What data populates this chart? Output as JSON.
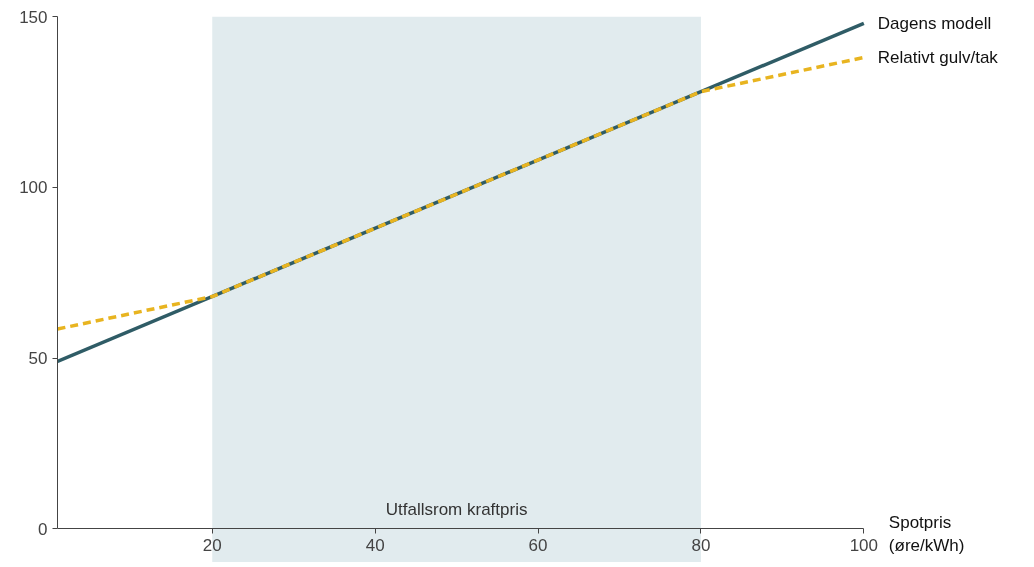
{
  "chart_data": {
    "type": "line",
    "xlabel": "Spotpris\n(øre/kWh)",
    "xlim": [
      1,
      100
    ],
    "ylim": [
      0,
      150
    ],
    "xticks": [
      20,
      40,
      60,
      80,
      100
    ],
    "yticks": [
      0,
      50,
      100,
      150
    ],
    "grid": false,
    "legend": false,
    "line_style": "solid",
    "marker": "none",
    "series": [
      {
        "name": "Dagens modell",
        "color": "#2f5c66",
        "x": [
          1,
          100
        ],
        "values": [
          49,
          148
        ]
      },
      {
        "name": "Relativt gulv/tak",
        "color": "#e8b420",
        "line_style": "dashed",
        "x": [
          1,
          20,
          80,
          100
        ],
        "values": [
          58.5,
          68,
          128,
          138
        ]
      }
    ],
    "bands": [
      {
        "axis": "x",
        "from": 20,
        "to": 80,
        "label": "Utfallsrom kraftpris",
        "color": "#e1ebee"
      }
    ]
  }
}
